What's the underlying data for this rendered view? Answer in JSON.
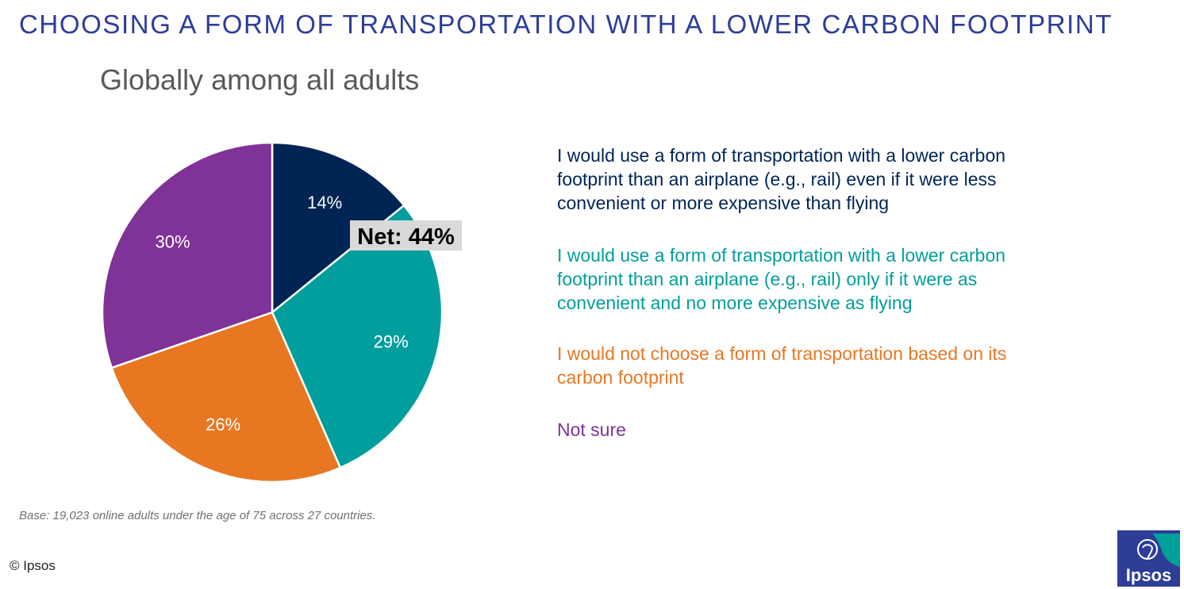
{
  "title": "CHOOSING A FORM OF TRANSPORTATION WITH A LOWER CARBON FOOTPRINT",
  "subtitle": "Globally among all adults",
  "chart_data": {
    "type": "pie",
    "start_angle_deg": 0,
    "direction": "clockwise",
    "slices": [
      {
        "label": "I would use a form of transportation with a lower carbon footprint than an airplane (e.g., rail) even if it were less convenient or more expensive than flying",
        "value": 14,
        "value_label": "14%",
        "color": "#002554"
      },
      {
        "label": "I would use a form of transportation with a lower carbon footprint than an airplane (e.g., rail) only if it were as convenient and no more expensive as flying",
        "value": 29,
        "value_label": "29%",
        "color": "#009e9c"
      },
      {
        "label": "I would not choose a form of transportation based on its carbon footprint",
        "value": 26,
        "value_label": "26%",
        "color": "#e87722"
      },
      {
        "label": "Not sure",
        "value": 30,
        "value_label": "30%",
        "color": "#7f3297"
      }
    ],
    "annotation": "Net: 44%",
    "legend_position": "right"
  },
  "base_note": "Base: 19,023 online adults under the age of 75 across 27 countries.",
  "copyright": "© Ipsos",
  "logo": {
    "text": "Ipsos",
    "icon": "ipsos-logo-icon",
    "bg_color": "#2e3d98",
    "accent_color": "#00a19b"
  }
}
